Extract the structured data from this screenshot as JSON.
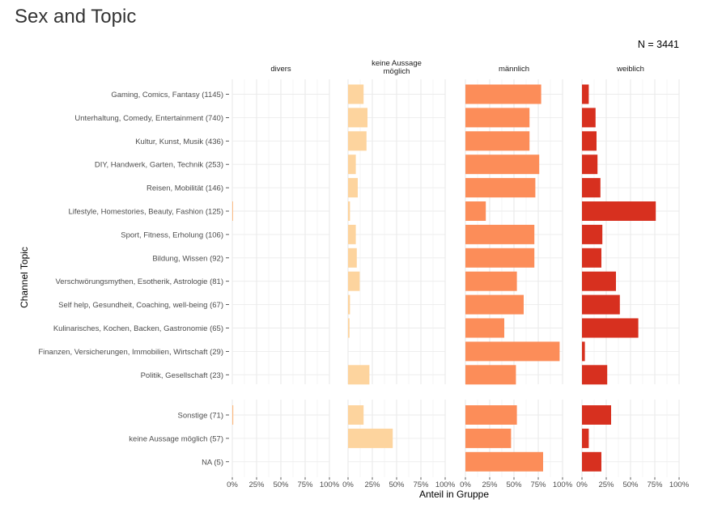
{
  "title": "Sex and Topic",
  "annotation": "N = 3441",
  "chart_data": {
    "type": "bar",
    "orientation": "horizontal",
    "facets": [
      "divers",
      "keine Aussage möglich",
      "männlich",
      "weiblich"
    ],
    "facet_labels": [
      [
        "divers"
      ],
      [
        "keine Aussage",
        "möglich"
      ],
      [
        "männlich"
      ],
      [
        "weiblich"
      ]
    ],
    "facet_colors": [
      "#fdbb84",
      "#fdd49e",
      "#fc8d59",
      "#d7301f"
    ],
    "groups": [
      {
        "categories": [
          "Gaming, Comics, Fantasy (1145)",
          "Unterhaltung, Comedy, Entertainment (740)",
          "Kultur, Kunst, Musik (436)",
          "DIY, Handwerk, Garten, Technik (253)",
          "Reisen, Mobilität (146)",
          "Lifestyle, Homestories, Beauty, Fashion (125)",
          "Sport, Fitness, Erholung (106)",
          "Bildung, Wissen (92)",
          "Verschwörungsmythen, Esotherik, Astrologie (81)",
          "Self help, Gesundheit, Coaching, well-being (67)",
          "Kulinarisches, Kochen, Backen, Gastronomie (65)",
          "Finanzen, Versicherungen, Immobilien, Wirtschaft (29)",
          "Politik, Gesellschaft (23)"
        ],
        "series": [
          {
            "name": "divers",
            "values": [
              0,
              0,
              0,
              0,
              0,
              0.8,
              0,
              0,
              0,
              0,
              0,
              0,
              0
            ]
          },
          {
            "name": "keine Aussage möglich",
            "values": [
              16,
              20,
              19,
              8,
              10,
              2,
              8,
              9,
              12,
              2,
              1.5,
              0,
              22
            ]
          },
          {
            "name": "männlich",
            "values": [
              78,
              66,
              66,
              76,
              72,
              21,
              71,
              71,
              53,
              60,
              40,
              97,
              52
            ]
          },
          {
            "name": "weiblich",
            "values": [
              7,
              14,
              15,
              16,
              19,
              76,
              21,
              20,
              35,
              39,
              58,
              3,
              26
            ]
          }
        ]
      },
      {
        "categories": [
          "Sonstige (71)",
          "keine Aussage möglich (57)",
          "NA (5)"
        ],
        "series": [
          {
            "name": "divers",
            "values": [
              1,
              0,
              0
            ]
          },
          {
            "name": "keine Aussage möglich",
            "values": [
              16,
              46,
              0
            ]
          },
          {
            "name": "männlich",
            "values": [
              53,
              47,
              80
            ]
          },
          {
            "name": "weiblich",
            "values": [
              30,
              7,
              20
            ]
          }
        ]
      }
    ],
    "x_ticks": [
      "0%",
      "25%",
      "50%",
      "75%",
      "100%"
    ],
    "xlim": [
      0,
      100
    ],
    "xlabel": "Anteil in Gruppe",
    "ylabel": "Channel Topic",
    "grid": true,
    "legend": "none"
  }
}
